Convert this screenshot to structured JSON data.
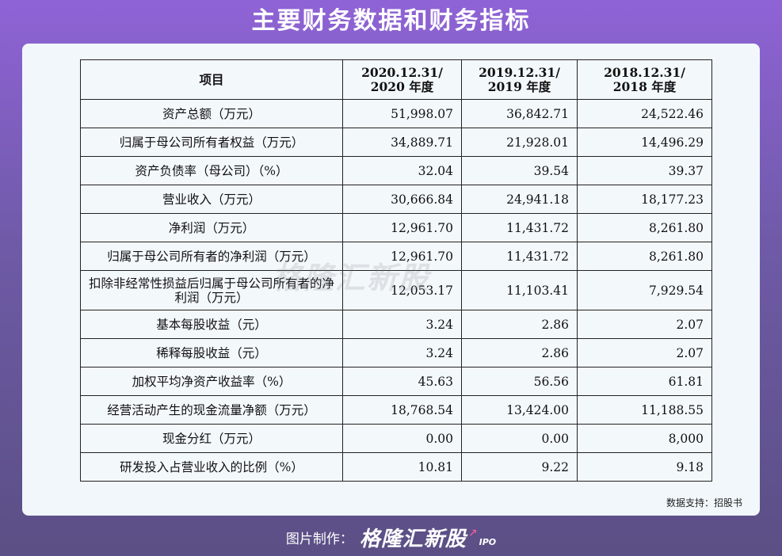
{
  "page": {
    "title": "主要财务数据和财务指标"
  },
  "table": {
    "header": {
      "item": "项目",
      "columns": [
        {
          "line1": "2020.12.31/",
          "line2": "2020 年度"
        },
        {
          "line1": "2019.12.31/",
          "line2": "2019 年度"
        },
        {
          "line1": "2018.12.31/",
          "line2": "2018 年度"
        }
      ]
    },
    "rows": [
      {
        "label": "资产总额（万元）",
        "v": [
          "51,998.07",
          "36,842.71",
          "24,522.46"
        ]
      },
      {
        "label": "归属于母公司所有者权益（万元）",
        "v": [
          "34,889.71",
          "21,928.01",
          "14,496.29"
        ]
      },
      {
        "label": "资产负债率（母公司）（%）",
        "v": [
          "32.04",
          "39.54",
          "39.37"
        ]
      },
      {
        "label": "营业收入（万元）",
        "v": [
          "30,666.84",
          "24,941.18",
          "18,177.23"
        ]
      },
      {
        "label": "净利润（万元）",
        "v": [
          "12,961.70",
          "11,431.72",
          "8,261.80"
        ]
      },
      {
        "label": "归属于母公司所有者的净利润（万元）",
        "v": [
          "12,961.70",
          "11,431.72",
          "8,261.80"
        ]
      },
      {
        "label": "扣除非经常性损益后归属于母公司所有者的净利润（万元）",
        "v": [
          "12,053.17",
          "11,103.41",
          "7,929.54"
        ]
      },
      {
        "label": "基本每股收益（元）",
        "v": [
          "3.24",
          "2.86",
          "2.07"
        ]
      },
      {
        "label": "稀释每股收益（元）",
        "v": [
          "3.24",
          "2.86",
          "2.07"
        ]
      },
      {
        "label": "加权平均净资产收益率（%）",
        "v": [
          "45.63",
          "56.56",
          "61.81"
        ]
      },
      {
        "label": "经营活动产生的现金流量净额（万元）",
        "v": [
          "18,768.54",
          "13,424.00",
          "11,188.55"
        ]
      },
      {
        "label": "现金分红（万元）",
        "v": [
          "0.00",
          "0.00",
          "8,000"
        ]
      },
      {
        "label": "研发投入占营业收入的比例（%）",
        "v": [
          "10.81",
          "9.22",
          "9.18"
        ]
      }
    ]
  },
  "source": "数据支持：招股书",
  "watermark": "格隆汇新股",
  "footer": {
    "label": "图片制作：",
    "brand": "格隆汇新股",
    "ipo": "IPO"
  }
}
